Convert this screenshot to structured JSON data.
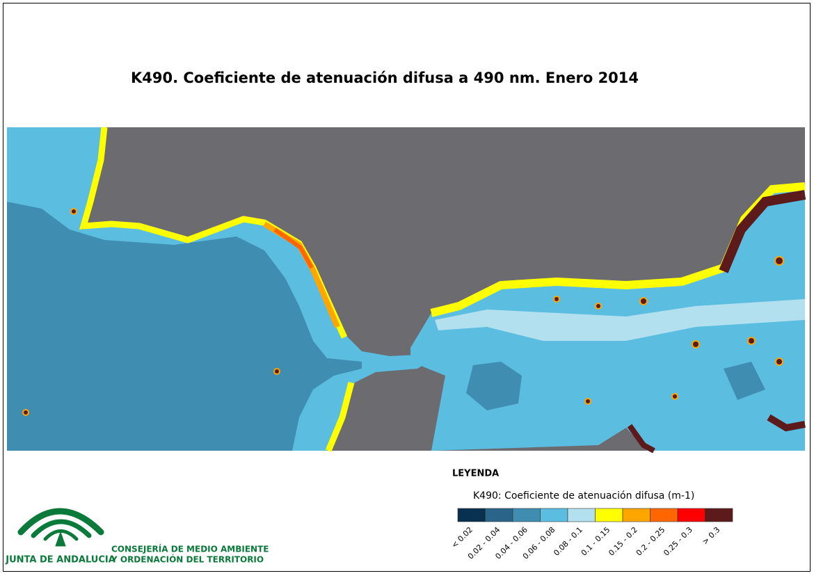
{
  "title": "K490. Coeficiente de atenuación difusa a 490 nm. Enero 2014",
  "legend": {
    "heading": "LEYENDA",
    "subtitle": "K490: Coeficiente de atenuación difusa (m-1)",
    "classes": [
      {
        "label": "< 0.02",
        "color": "#08304f"
      },
      {
        "label": "0.02 - 0.04",
        "color": "#2a6488"
      },
      {
        "label": "0.04 - 0.06",
        "color": "#3f8db0"
      },
      {
        "label": "0.06 - 0.08",
        "color": "#5bbde0"
      },
      {
        "label": "0.08 - 0.1",
        "color": "#b3e0ee"
      },
      {
        "label": "0.1 - 0.15",
        "color": "#ffff00"
      },
      {
        "label": "0.15 - 0.2",
        "color": "#ffa500"
      },
      {
        "label": "0.2 - 0.25",
        "color": "#ff6600"
      },
      {
        "label": "0.25 - 0.3",
        "color": "#ff0000"
      },
      {
        "label": "> 0.3",
        "color": "#5c1a1a"
      }
    ]
  },
  "logo": {
    "name": "JUNTA DE ANDALUCIA",
    "department": [
      "CONSEJERÍA DE MEDIO AMBIENTE",
      "Y ORDENACIÓN DEL TERRITORIO"
    ]
  }
}
